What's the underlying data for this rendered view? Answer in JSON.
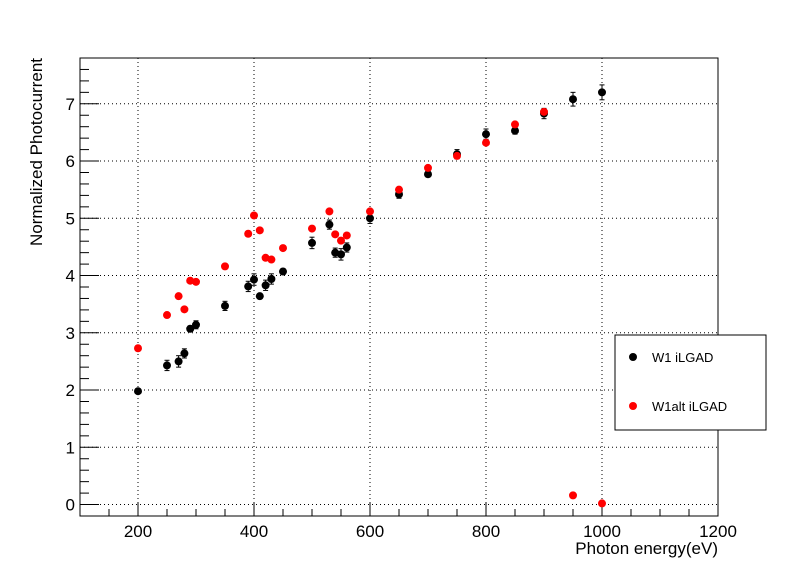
{
  "chart_data": {
    "type": "scatter",
    "title": "",
    "xlabel": "Photon energy(eV)",
    "ylabel": "Normalized Photocurrent",
    "xlim": [
      100,
      1200
    ],
    "ylim": [
      -0.2,
      7.8
    ],
    "x_major_ticks": [
      200,
      400,
      600,
      800,
      1000,
      1200
    ],
    "y_major_ticks": [
      0,
      1,
      2,
      3,
      4,
      5,
      6,
      7
    ],
    "x_tick_labels": [
      "200",
      "400",
      "600",
      "800",
      "1000",
      "1200"
    ],
    "y_tick_labels": [
      "0",
      "1",
      "2",
      "3",
      "4",
      "5",
      "6",
      "7"
    ],
    "grid": "dotted",
    "legend_placement": "right",
    "series": [
      {
        "name": "W1  iLGAD",
        "color": "#000000",
        "marker": "circle",
        "points": [
          {
            "x": 200,
            "y": 1.98,
            "err": 0.04
          },
          {
            "x": 250,
            "y": 2.43,
            "err": 0.09
          },
          {
            "x": 270,
            "y": 2.5,
            "err": 0.1
          },
          {
            "x": 280,
            "y": 2.64,
            "err": 0.08
          },
          {
            "x": 290,
            "y": 3.07,
            "err": 0.05
          },
          {
            "x": 300,
            "y": 3.14,
            "err": 0.07
          },
          {
            "x": 350,
            "y": 3.47,
            "err": 0.08
          },
          {
            "x": 390,
            "y": 3.81,
            "err": 0.09
          },
          {
            "x": 400,
            "y": 3.93,
            "err": 0.1
          },
          {
            "x": 410,
            "y": 3.64,
            "err": 0.04
          },
          {
            "x": 420,
            "y": 3.83,
            "err": 0.09
          },
          {
            "x": 430,
            "y": 3.94,
            "err": 0.09
          },
          {
            "x": 450,
            "y": 4.07,
            "err": 0.05
          },
          {
            "x": 500,
            "y": 4.57,
            "err": 0.1
          },
          {
            "x": 530,
            "y": 4.89,
            "err": 0.08
          },
          {
            "x": 540,
            "y": 4.4,
            "err": 0.08
          },
          {
            "x": 550,
            "y": 4.37,
            "err": 0.1
          },
          {
            "x": 560,
            "y": 4.49,
            "err": 0.08
          },
          {
            "x": 600,
            "y": 5.0,
            "err": 0.09
          },
          {
            "x": 650,
            "y": 5.42,
            "err": 0.07
          },
          {
            "x": 700,
            "y": 5.77,
            "err": 0.05
          },
          {
            "x": 750,
            "y": 6.12,
            "err": 0.08
          },
          {
            "x": 800,
            "y": 6.47,
            "err": 0.09
          },
          {
            "x": 850,
            "y": 6.53,
            "err": 0.06
          },
          {
            "x": 900,
            "y": 6.83,
            "err": 0.09
          },
          {
            "x": 950,
            "y": 7.08,
            "err": 0.12
          },
          {
            "x": 1000,
            "y": 7.2,
            "err": 0.13
          }
        ]
      },
      {
        "name": "W1alt  iLGAD",
        "color": "#ff0000",
        "marker": "circle",
        "points": [
          {
            "x": 200,
            "y": 2.73
          },
          {
            "x": 250,
            "y": 3.31
          },
          {
            "x": 270,
            "y": 3.64
          },
          {
            "x": 280,
            "y": 3.41
          },
          {
            "x": 290,
            "y": 3.91
          },
          {
            "x": 300,
            "y": 3.89
          },
          {
            "x": 350,
            "y": 4.16
          },
          {
            "x": 390,
            "y": 4.73
          },
          {
            "x": 400,
            "y": 5.05
          },
          {
            "x": 410,
            "y": 4.79
          },
          {
            "x": 420,
            "y": 4.31
          },
          {
            "x": 430,
            "y": 4.28
          },
          {
            "x": 450,
            "y": 4.48
          },
          {
            "x": 500,
            "y": 4.82
          },
          {
            "x": 530,
            "y": 5.12
          },
          {
            "x": 540,
            "y": 4.72
          },
          {
            "x": 550,
            "y": 4.61
          },
          {
            "x": 560,
            "y": 4.7
          },
          {
            "x": 600,
            "y": 5.12
          },
          {
            "x": 650,
            "y": 5.5
          },
          {
            "x": 700,
            "y": 5.88
          },
          {
            "x": 750,
            "y": 6.09
          },
          {
            "x": 800,
            "y": 6.32
          },
          {
            "x": 850,
            "y": 6.64
          },
          {
            "x": 900,
            "y": 6.86
          },
          {
            "x": 950,
            "y": 0.16
          },
          {
            "x": 1000,
            "y": 0.02
          }
        ]
      }
    ]
  }
}
